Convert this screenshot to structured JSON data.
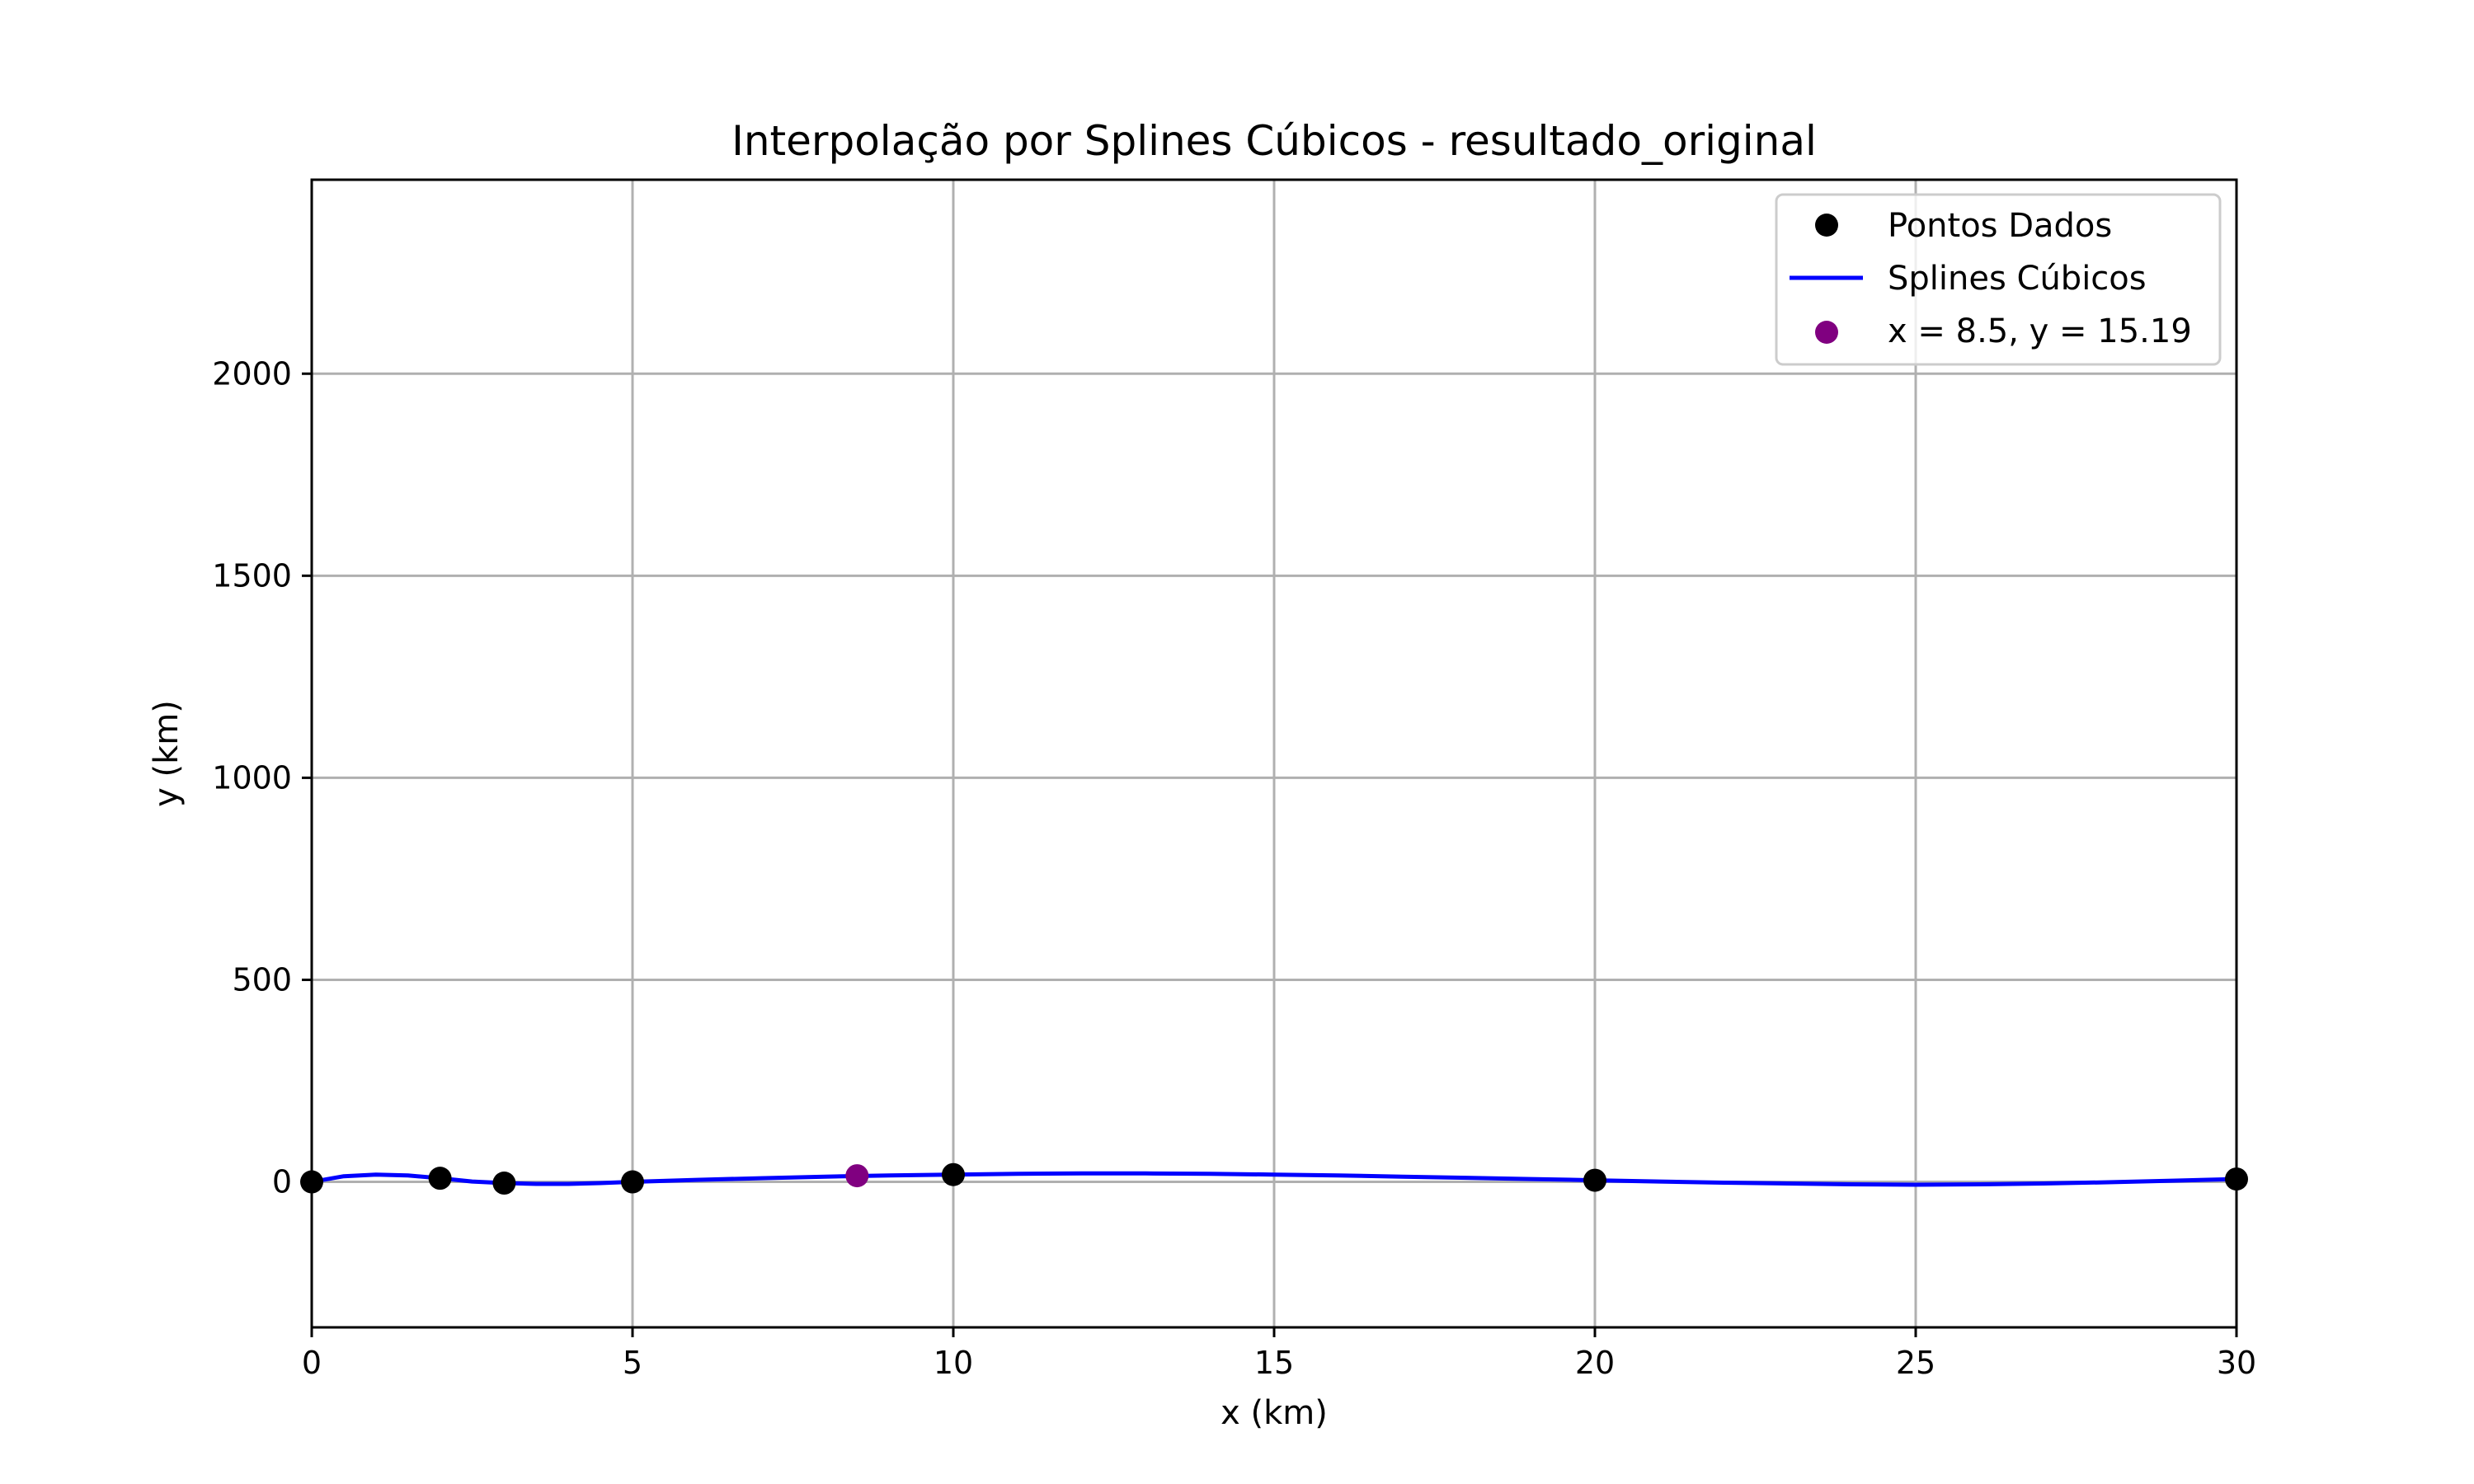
{
  "chart_data": {
    "type": "line",
    "title": "Interpolação por Splines Cúbicos - resultado_original",
    "xlabel": "x (km)",
    "ylabel": "y (km)",
    "xlim": [
      0,
      30
    ],
    "ylim": [
      -360,
      2480
    ],
    "xticks": [
      0,
      5,
      10,
      15,
      20,
      25,
      30
    ],
    "yticks": [
      0,
      500,
      1000,
      1500,
      2000
    ],
    "grid": true,
    "legend_position": "top-right",
    "series": [
      {
        "name": "Pontos Dados",
        "kind": "scatter",
        "color": "#000000",
        "x": [
          0,
          2,
          3,
          5,
          10,
          20,
          30
        ],
        "y": [
          0,
          9,
          -3,
          0,
          18,
          4,
          7
        ]
      },
      {
        "name": "Splines Cúbicos",
        "kind": "line",
        "color": "#0000ff",
        "x": [
          0,
          0.5,
          1,
          1.5,
          2,
          2.5,
          3,
          3.5,
          4,
          4.5,
          5,
          6,
          7,
          8,
          9,
          10,
          11,
          12,
          13,
          14,
          15,
          16,
          17,
          18,
          19,
          20,
          21,
          22,
          23,
          24,
          25,
          26,
          27,
          28,
          29,
          30
        ],
        "y": [
          0,
          14,
          18,
          16,
          9,
          1,
          -3,
          -5,
          -5,
          -3,
          0,
          5,
          9,
          13,
          16,
          18,
          20,
          21,
          21,
          20,
          18,
          16,
          13,
          10,
          7,
          4,
          1,
          -2,
          -4,
          -6,
          -7,
          -6,
          -4,
          -1,
          3,
          7
        ]
      },
      {
        "name": "x = 8.5, y = 15.19",
        "kind": "scatter",
        "color": "#800080",
        "x": [
          8.5
        ],
        "y": [
          15.19
        ]
      }
    ]
  }
}
